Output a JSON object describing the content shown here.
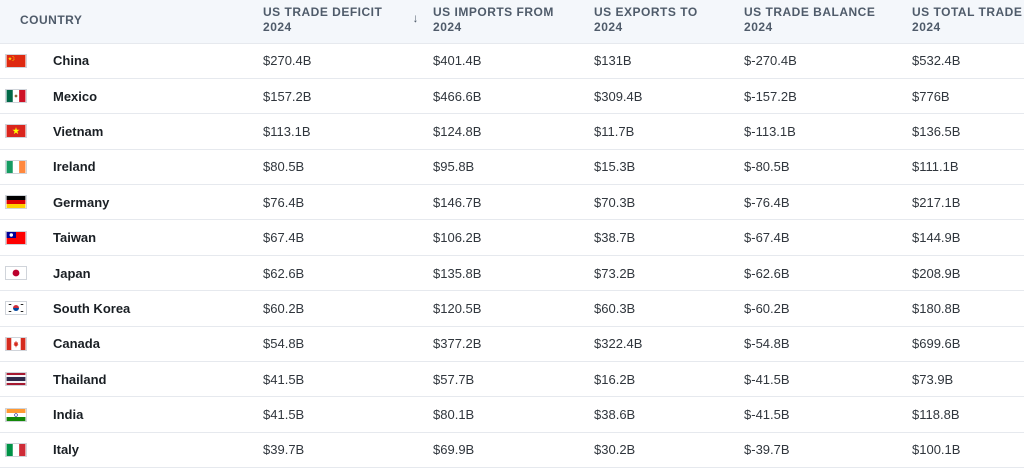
{
  "headers": {
    "country": "COUNTRY",
    "deficit_line1": "US TRADE DEFICIT",
    "deficit_line2": "2024",
    "imports_line1": "US IMPORTS FROM",
    "imports_line2": "2024",
    "exports_line1": "US EXPORTS TO",
    "exports_line2": "2024",
    "balance_line1": "US TRADE BALANCE",
    "balance_line2": "2024",
    "total_line1": "US TOTAL TRADE",
    "total_line2": "2024",
    "sort_indicator": "↓"
  },
  "rows": [
    {
      "country": "China",
      "flag": "china-flag-icon",
      "deficit": "$270.4B",
      "imports": "$401.4B",
      "exports": "$131B",
      "balance": "$-270.4B",
      "total": "$532.4B"
    },
    {
      "country": "Mexico",
      "flag": "mexico-flag-icon",
      "deficit": "$157.2B",
      "imports": "$466.6B",
      "exports": "$309.4B",
      "balance": "$-157.2B",
      "total": "$776B"
    },
    {
      "country": "Vietnam",
      "flag": "vietnam-flag-icon",
      "deficit": "$113.1B",
      "imports": "$124.8B",
      "exports": "$11.7B",
      "balance": "$-113.1B",
      "total": "$136.5B"
    },
    {
      "country": "Ireland",
      "flag": "ireland-flag-icon",
      "deficit": "$80.5B",
      "imports": "$95.8B",
      "exports": "$15.3B",
      "balance": "$-80.5B",
      "total": "$111.1B"
    },
    {
      "country": "Germany",
      "flag": "germany-flag-icon",
      "deficit": "$76.4B",
      "imports": "$146.7B",
      "exports": "$70.3B",
      "balance": "$-76.4B",
      "total": "$217.1B"
    },
    {
      "country": "Taiwan",
      "flag": "taiwan-flag-icon",
      "deficit": "$67.4B",
      "imports": "$106.2B",
      "exports": "$38.7B",
      "balance": "$-67.4B",
      "total": "$144.9B"
    },
    {
      "country": "Japan",
      "flag": "japan-flag-icon",
      "deficit": "$62.6B",
      "imports": "$135.8B",
      "exports": "$73.2B",
      "balance": "$-62.6B",
      "total": "$208.9B"
    },
    {
      "country": "South Korea",
      "flag": "south-korea-flag-icon",
      "deficit": "$60.2B",
      "imports": "$120.5B",
      "exports": "$60.3B",
      "balance": "$-60.2B",
      "total": "$180.8B"
    },
    {
      "country": "Canada",
      "flag": "canada-flag-icon",
      "deficit": "$54.8B",
      "imports": "$377.2B",
      "exports": "$322.4B",
      "balance": "$-54.8B",
      "total": "$699.6B"
    },
    {
      "country": "Thailand",
      "flag": "thailand-flag-icon",
      "deficit": "$41.5B",
      "imports": "$57.7B",
      "exports": "$16.2B",
      "balance": "$-41.5B",
      "total": "$73.9B"
    },
    {
      "country": "India",
      "flag": "india-flag-icon",
      "deficit": "$41.5B",
      "imports": "$80.1B",
      "exports": "$38.6B",
      "balance": "$-41.5B",
      "total": "$118.8B"
    },
    {
      "country": "Italy",
      "flag": "italy-flag-icon",
      "deficit": "$39.7B",
      "imports": "$69.9B",
      "exports": "$30.2B",
      "balance": "$-39.7B",
      "total": "$100.1B"
    }
  ]
}
